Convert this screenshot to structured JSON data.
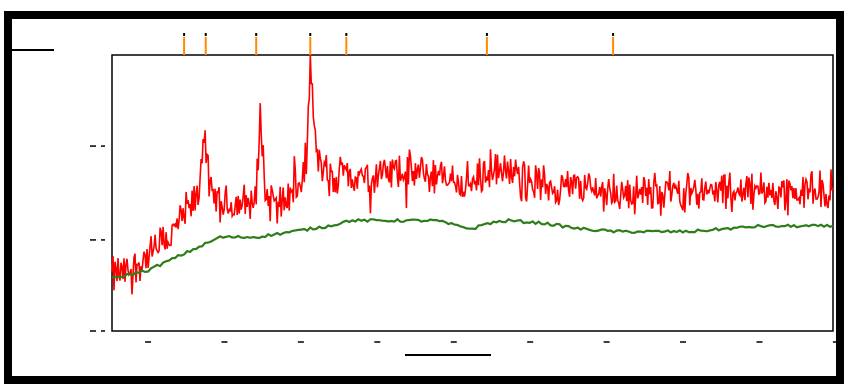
{
  "chart_data": {
    "type": "line",
    "title": "",
    "xlabel": "",
    "ylabel": "",
    "xlim": [
      0,
      100
    ],
    "ylim": [
      0,
      100
    ],
    "grid": false,
    "legend": "none",
    "colors": {
      "spectrum": "#ff0000",
      "smoothed": "#2e7d1a",
      "line_marker": "#ff8c00",
      "frame": "#000000"
    },
    "x_ticks": [
      5,
      15.6,
      26.2,
      36.8,
      47.4,
      58,
      68.6,
      79.2,
      89.8,
      100.4
    ],
    "y_ticks": [
      0,
      33,
      67
    ],
    "line_markers": [
      10,
      13,
      20,
      27.5,
      32.5,
      52,
      69.5
    ],
    "series": [
      {
        "role": "noisy spectrum",
        "x": [
          0,
          2,
          4,
          6,
          8,
          10,
          12,
          12.8,
          13.5,
          15,
          18,
          20,
          20.6,
          21.3,
          24,
          26,
          27,
          27.5,
          28.2,
          29,
          31,
          32.5,
          33.2,
          35,
          38,
          40,
          45,
          50,
          52,
          55,
          60,
          65,
          70,
          75,
          80,
          85,
          90,
          95,
          100
        ],
        "y": [
          20,
          21,
          25,
          29,
          34,
          42,
          48,
          75,
          50,
          45,
          46,
          47,
          82,
          48,
          48,
          52,
          62,
          100,
          66,
          60,
          52,
          62,
          55,
          56,
          57,
          58,
          56,
          53,
          58,
          57,
          53,
          52,
          50,
          50,
          51,
          50,
          51,
          50,
          51
        ],
        "noise_amplitude": 6
      },
      {
        "role": "smoothed fit",
        "x": [
          0,
          5,
          10,
          15,
          20,
          25,
          30,
          33,
          40,
          45,
          48,
          50,
          52,
          55,
          60,
          65,
          70,
          75,
          80,
          85,
          90,
          95,
          100
        ],
        "y": [
          19,
          22,
          28,
          34,
          34,
          36,
          38,
          40,
          40,
          40,
          38,
          37,
          39,
          40,
          39,
          37,
          36,
          36,
          36,
          37,
          38,
          38,
          38
        ]
      }
    ]
  }
}
